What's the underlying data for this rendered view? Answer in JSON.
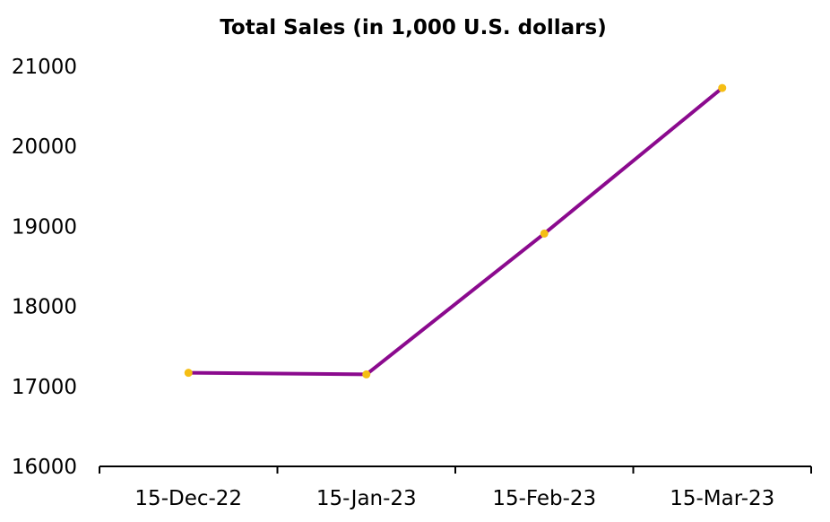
{
  "chart_data": {
    "type": "line",
    "title": "Total Sales (in 1,000 U.S. dollars)",
    "xlabel": "",
    "ylabel": "",
    "categories": [
      "15-Dec-22",
      "15-Jan-23",
      "15-Feb-23",
      "15-Mar-23"
    ],
    "series": [
      {
        "values": [
          17170,
          17150,
          18910,
          20730
        ]
      }
    ],
    "ylim": [
      16000,
      21000
    ],
    "yticks": [
      "16000",
      "17000",
      "18000",
      "19000",
      "20000",
      "21000"
    ],
    "grid": false,
    "legend": "none",
    "colors": {
      "line": "#8B0A8E",
      "marker": "#F5BE14",
      "axis": "#000000"
    }
  }
}
